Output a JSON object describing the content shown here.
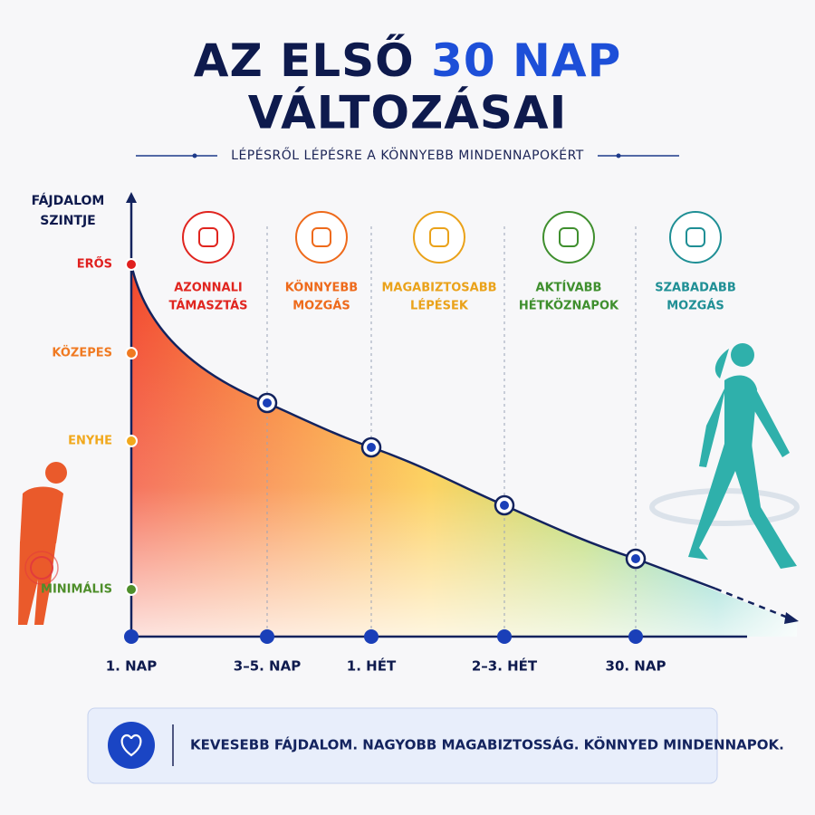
{
  "header": {
    "title_part1": "AZ ELSŐ",
    "title_highlight": "30 NAP",
    "title_line2": "VÁLTOZÁSAI",
    "subtitle": "LÉPÉSRŐL LÉPÉSRE A KÖNNYEBB MINDENNAPOKÉRT"
  },
  "y_axis": {
    "title": [
      "FÁJDALOM",
      "SZINTJE"
    ],
    "levels": [
      "ERŐS",
      "KÖZEPES",
      "ENYHE",
      "MINIMÁLIS"
    ]
  },
  "x_axis": {
    "labels": [
      "1. NAP",
      "3–5. NAP",
      "1. HÉT",
      "2–3. HÉT",
      "30. NAP"
    ]
  },
  "milestones": [
    {
      "lines": [
        "AZONNALI",
        "TÁMASZTÁS"
      ]
    },
    {
      "lines": [
        "KÖNNYEBB",
        "MOZGÁS"
      ]
    },
    {
      "lines": [
        "MAGABIZTOSABB",
        "LÉPÉSEK"
      ]
    },
    {
      "lines": [
        "AKTÍVABB",
        "HÉTKÖZNAPOK"
      ]
    },
    {
      "lines": [
        "SZABADABB",
        "MOZGÁS"
      ]
    }
  ],
  "footer": {
    "text": "KEVESEBB FÁJDALOM. NAGYOBB MAGABIZTOSSÁG. KÖNNYED MINDENNAPOK."
  }
}
